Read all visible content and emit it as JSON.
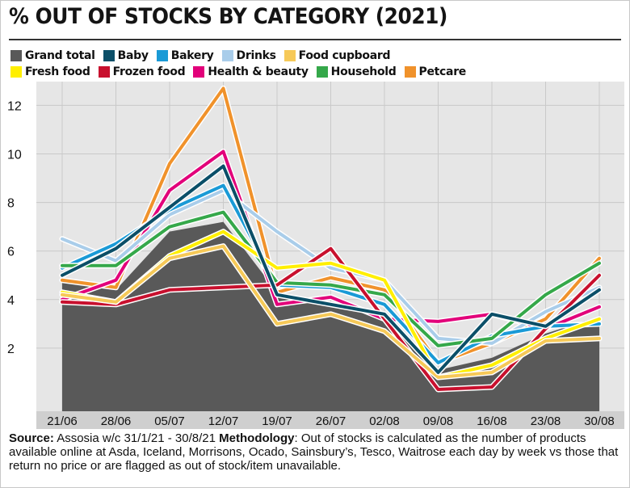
{
  "chart_data": {
    "type": "line",
    "title": "% OUT OF STOCKS BY CATEGORY (2021)",
    "xlabel": "",
    "ylabel": "",
    "categories": [
      "21/06",
      "28/06",
      "05/07",
      "12/07",
      "19/07",
      "26/07",
      "02/08",
      "09/08",
      "16/08",
      "23/08",
      "30/08"
    ],
    "y_ticks": [
      "2",
      "4",
      "6",
      "8",
      "10",
      "12"
    ],
    "ylim": [
      0,
      13.2
    ],
    "grid": true,
    "legend_position": "top-left",
    "area_series": "Grand total",
    "series": [
      {
        "name": "Grand total",
        "color": "#595959",
        "values": [
          4.7,
          4.4,
          6.8,
          7.2,
          4.3,
          3.9,
          3.3,
          1.1,
          1.6,
          2.6,
          3.3
        ]
      },
      {
        "name": "Baby",
        "color": "#0b4f68",
        "values": [
          5.0,
          6.1,
          7.8,
          9.5,
          4.2,
          3.8,
          3.4,
          1.0,
          3.4,
          2.9,
          4.4
        ]
      },
      {
        "name": "Bakery",
        "color": "#1a9ad6",
        "values": [
          5.3,
          6.3,
          7.7,
          8.7,
          4.6,
          4.5,
          3.8,
          1.4,
          2.5,
          2.9,
          3.0
        ]
      },
      {
        "name": "Drinks",
        "color": "#a9cdea",
        "values": [
          6.5,
          5.6,
          7.5,
          8.5,
          6.8,
          5.3,
          4.8,
          2.4,
          2.2,
          3.5,
          4.5
        ]
      },
      {
        "name": "Food cupboard",
        "color": "#f6c958",
        "values": [
          4.2,
          3.9,
          5.7,
          6.2,
          3.0,
          3.4,
          2.7,
          0.8,
          1.0,
          2.3,
          2.4
        ]
      },
      {
        "name": "Fresh food",
        "color": "#ffef00",
        "values": [
          4.3,
          3.9,
          5.8,
          6.8,
          5.3,
          5.5,
          4.8,
          0.8,
          1.3,
          2.4,
          3.2
        ]
      },
      {
        "name": "Frozen food",
        "color": "#c8102e",
        "values": [
          3.9,
          3.8,
          4.4,
          4.5,
          4.6,
          6.1,
          3.2,
          0.3,
          0.4,
          2.8,
          5.0
        ]
      },
      {
        "name": "Health & beauty",
        "color": "#e2007a",
        "values": [
          4.0,
          4.8,
          8.5,
          10.1,
          3.8,
          4.1,
          3.2,
          3.1,
          3.4,
          2.8,
          3.7
        ]
      },
      {
        "name": "Household",
        "color": "#35a84a",
        "values": [
          5.4,
          5.4,
          7.0,
          7.6,
          4.7,
          4.6,
          4.2,
          2.1,
          2.4,
          4.2,
          5.5
        ]
      },
      {
        "name": "Petcare",
        "color": "#f0922b",
        "values": [
          4.8,
          4.5,
          9.6,
          12.7,
          4.3,
          4.9,
          4.4,
          1.4,
          2.2,
          3.2,
          5.7
        ]
      }
    ],
    "draw_order": [
      "Petcare",
      "Health & beauty",
      "Drinks",
      "Bakery",
      "Household",
      "Frozen food",
      "Fresh food",
      "Food cupboard",
      "Baby"
    ]
  },
  "legend_rows": [
    [
      "Grand total",
      "Baby",
      "Bakery",
      "Drinks",
      "Food cupboard"
    ],
    [
      "Fresh food",
      "Frozen food",
      "Health & beauty",
      "Household",
      "Petcare"
    ]
  ],
  "footer": {
    "source_label": "Source:",
    "source_text": " Assosia w/c 31/1/21 - 30/8/21 ",
    "methodology_label": "Methodology",
    "methodology_text": ": Out of stocks is calculated as the number of products available online at Asda, Iceland, Morrisons, Ocado, Sainsbury’s, Tesco, Waitrose each day by week vs those that return no price or are flagged as out of stock/item unavailable."
  }
}
